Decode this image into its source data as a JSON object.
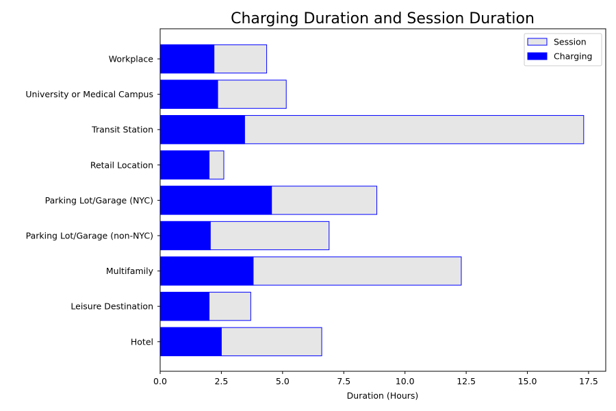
{
  "chart_data": {
    "type": "bar",
    "orientation": "horizontal",
    "title": "Charging Duration and Session Duration",
    "xlabel": "Duration (Hours)",
    "ylabel": "",
    "xlim": [
      0,
      18.2
    ],
    "xticks": [
      "0.0",
      "2.5",
      "5.0",
      "7.5",
      "10.0",
      "12.5",
      "15.0",
      "17.5"
    ],
    "grid": false,
    "legend_position": "top-right",
    "categories": [
      "Workplace",
      "University or Medical Campus",
      "Transit Station",
      "Retail Location",
      "Parking Lot/Garage (NYC)",
      "Parking Lot/Garage (non-NYC)",
      "Multifamily",
      "Leisure Destination",
      "Hotel"
    ],
    "series": [
      {
        "name": "Session",
        "color": "#e6e6e6",
        "edge_color": "#0000ff",
        "values": [
          4.35,
          5.15,
          17.3,
          2.6,
          8.85,
          6.9,
          12.3,
          3.7,
          6.6
        ]
      },
      {
        "name": "Charging",
        "color": "#0000ff",
        "edge_color": "#0000ff",
        "values": [
          2.2,
          2.35,
          3.45,
          2.0,
          4.55,
          2.05,
          3.8,
          2.0,
          2.5
        ]
      }
    ]
  }
}
